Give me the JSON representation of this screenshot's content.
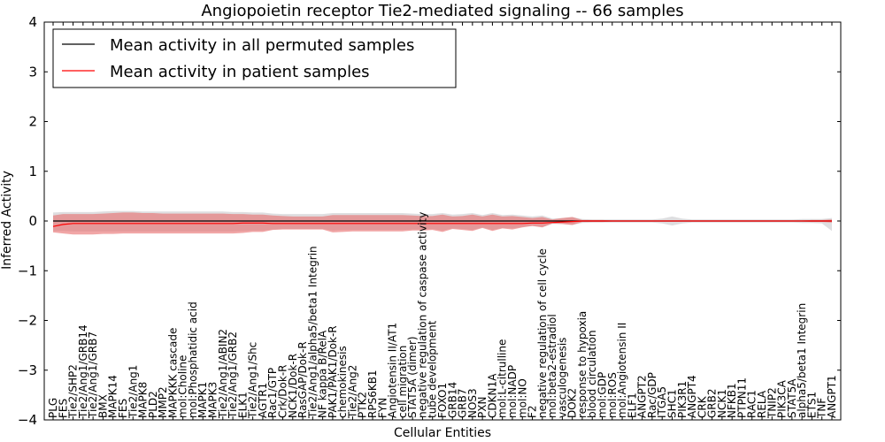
{
  "chart_data": {
    "type": "line",
    "title": "Angiopoietin receptor Tie2-mediated signaling -- 66 samples",
    "xlabel": "Cellular Entities",
    "ylabel": "Inferred Activity",
    "ylim": [
      -4,
      4
    ],
    "yticks": [
      -4,
      -3,
      -2,
      -1,
      0,
      1,
      2,
      3,
      4
    ],
    "legend": {
      "position": "top-left",
      "entries": [
        {
          "label": "Mean activity in all permuted samples",
          "color": "#000000"
        },
        {
          "label": "Mean activity in patient samples",
          "color": "#ff0000"
        }
      ]
    },
    "categories": [
      "PLG",
      "FES",
      "Tie2/SHP2",
      "Tie2/Ang1/GRB14",
      "Tie2/Ang1/GRB7",
      "BMX",
      "MAPK14",
      "FES",
      "Tie2/Ang1",
      "MAPK8",
      "PLD2",
      "MMP2",
      "MAPKKK cascade",
      "mol:Choline",
      "mol:Phosphatidic acid",
      "MAPK1",
      "MAPK3",
      "Tie2/Ang1/ABIN2",
      "Tie2/Ang1/GRB2",
      "ELK1",
      "Tie2/Ang1/Shc",
      "AGTR1",
      "Rac1/GTP",
      "Crk/Dok-R",
      "NCK1/Dok-R",
      "RasGAP/Dok-R",
      "Tie2/Ang1/alpha5/beta1 Integrin",
      "NF kappa B/RelA",
      "PAK1/PAK1/Dok-R",
      "chemokinesis",
      "Tie2/Ang2",
      "PTK2",
      "RPS6KB1",
      "FYN",
      "Angiotensin II/AT1",
      "cell migration",
      "STAT5A (dimer)",
      "negative regulation of caspase activity",
      "tube development",
      "FOXO1",
      "GRB14",
      "GRB7",
      "NOS3",
      "PXN",
      "CDKN1A",
      "mol:L-citrulline",
      "mol:NADP",
      "mol:NO",
      "F2",
      "negative regulation of cell cycle",
      "mol:beta2-estradiol",
      "vasculogenesis",
      "DOK2",
      "response to hypoxia",
      "blood circulation",
      "mol:GDP",
      "mol:ROS",
      "mol:Angiotensin II",
      "ELF1",
      "ANGPT2",
      "Rac/GDP",
      "ITGA5",
      "SHC1",
      "PIK3R1",
      "ANGPT4",
      "CRK",
      "GRB2",
      "NCK1",
      "NFKB1",
      "PTPN11",
      "RAC1",
      "RELA",
      "TNIP2",
      "PIK3CA",
      "STAT5A",
      "alpha5/beta1 Integrin",
      "ETS1",
      "TNF",
      "ANGPT1"
    ],
    "series": [
      {
        "name": "Mean activity in patient samples",
        "color": "#ff0000",
        "values": [
          -0.11,
          -0.07,
          -0.05,
          -0.05,
          -0.05,
          -0.05,
          -0.05,
          -0.05,
          -0.05,
          -0.05,
          -0.05,
          -0.05,
          -0.05,
          -0.05,
          -0.05,
          -0.05,
          -0.05,
          -0.05,
          -0.05,
          -0.04,
          -0.04,
          -0.04,
          -0.05,
          -0.05,
          -0.05,
          -0.05,
          -0.05,
          -0.05,
          -0.05,
          -0.05,
          -0.05,
          -0.05,
          -0.05,
          -0.05,
          -0.05,
          -0.05,
          -0.05,
          -0.05,
          -0.05,
          -0.05,
          -0.05,
          -0.05,
          -0.05,
          -0.05,
          -0.05,
          -0.05,
          -0.05,
          -0.05,
          -0.04,
          -0.04,
          -0.03,
          -0.02,
          -0.01,
          0.0,
          0.0,
          0.0,
          0.0,
          0.0,
          0.0,
          0.0,
          0.0,
          0.0,
          0.0,
          0.0,
          0.0,
          0.0,
          0.0,
          0.0,
          0.0,
          0.0,
          0.0,
          0.0,
          0.0,
          0.0,
          0.0,
          0.0,
          0.0,
          0.0,
          0.0
        ],
        "band_upper": [
          0.11,
          0.14,
          0.14,
          0.14,
          0.14,
          0.15,
          0.16,
          0.17,
          0.17,
          0.16,
          0.16,
          0.15,
          0.15,
          0.15,
          0.15,
          0.15,
          0.15,
          0.15,
          0.14,
          0.14,
          0.13,
          0.13,
          0.11,
          0.1,
          0.09,
          0.09,
          0.09,
          0.09,
          0.12,
          0.12,
          0.12,
          0.12,
          0.12,
          0.12,
          0.12,
          0.12,
          0.11,
          0.1,
          0.1,
          0.13,
          0.09,
          0.1,
          0.13,
          0.09,
          0.13,
          0.09,
          0.1,
          0.08,
          0.06,
          0.08,
          0.03,
          0.06,
          0.08,
          0.02,
          0.02,
          0.02,
          0.01,
          0.01,
          0.01,
          0.01,
          0.01,
          0.01,
          0.01,
          0.01,
          0.01,
          0.01,
          0.01,
          0.01,
          0.01,
          0.01,
          0.01,
          0.01,
          0.01,
          0.01,
          0.01,
          0.01,
          0.02,
          0.02,
          0.03
        ],
        "band_lower": [
          -0.23,
          -0.25,
          -0.27,
          -0.27,
          -0.27,
          -0.26,
          -0.26,
          -0.25,
          -0.25,
          -0.25,
          -0.25,
          -0.25,
          -0.25,
          -0.25,
          -0.25,
          -0.25,
          -0.25,
          -0.25,
          -0.25,
          -0.24,
          -0.22,
          -0.22,
          -0.18,
          -0.17,
          -0.17,
          -0.17,
          -0.17,
          -0.17,
          -0.23,
          -0.22,
          -0.21,
          -0.21,
          -0.21,
          -0.21,
          -0.21,
          -0.21,
          -0.19,
          -0.19,
          -0.18,
          -0.22,
          -0.16,
          -0.18,
          -0.2,
          -0.14,
          -0.2,
          -0.15,
          -0.17,
          -0.13,
          -0.1,
          -0.13,
          -0.05,
          -0.06,
          -0.08,
          -0.02,
          -0.02,
          -0.02,
          -0.01,
          -0.01,
          -0.01,
          -0.01,
          -0.01,
          -0.01,
          -0.01,
          -0.01,
          -0.01,
          -0.01,
          -0.01,
          -0.01,
          -0.01,
          -0.01,
          -0.01,
          -0.01,
          -0.01,
          -0.01,
          -0.01,
          -0.01,
          -0.02,
          -0.02,
          -0.03
        ]
      },
      {
        "name": "Mean activity in all permuted samples",
        "color": "#000000",
        "values": [
          0,
          0,
          0,
          0,
          0,
          0,
          0,
          0,
          0,
          0,
          0,
          0,
          0,
          0,
          0,
          0,
          0,
          0,
          0,
          0,
          0,
          0,
          0,
          0,
          0,
          0,
          0,
          0,
          0,
          0,
          0,
          0,
          0,
          0,
          0,
          0,
          0,
          0,
          0,
          0,
          0,
          0,
          0,
          0,
          0,
          0,
          0,
          0,
          0,
          0,
          0,
          0,
          0,
          0,
          0,
          0,
          0,
          0,
          0,
          0,
          0,
          0,
          0,
          0,
          0,
          0,
          0,
          0,
          0,
          0,
          0,
          0,
          0,
          0,
          0,
          0,
          0,
          0,
          0
        ],
        "band_upper": [
          0.17,
          0.18,
          0.18,
          0.18,
          0.18,
          0.19,
          0.2,
          0.2,
          0.2,
          0.19,
          0.19,
          0.19,
          0.19,
          0.19,
          0.19,
          0.19,
          0.19,
          0.19,
          0.18,
          0.18,
          0.17,
          0.17,
          0.15,
          0.14,
          0.14,
          0.14,
          0.14,
          0.14,
          0.16,
          0.16,
          0.16,
          0.16,
          0.16,
          0.16,
          0.16,
          0.16,
          0.15,
          0.14,
          0.14,
          0.16,
          0.13,
          0.14,
          0.16,
          0.12,
          0.16,
          0.12,
          0.13,
          0.11,
          0.09,
          0.11,
          0.05,
          0.06,
          0.08,
          0.04,
          0.03,
          0.03,
          0.03,
          0.03,
          0.03,
          0.03,
          0.03,
          0.05,
          0.09,
          0.05,
          0.03,
          0.03,
          0.03,
          0.03,
          0.03,
          0.03,
          0.03,
          0.03,
          0.03,
          0.03,
          0.03,
          0.04,
          0.04,
          0.04,
          0.06
        ],
        "band_lower": [
          -0.2,
          -0.2,
          -0.21,
          -0.21,
          -0.21,
          -0.21,
          -0.21,
          -0.21,
          -0.21,
          -0.21,
          -0.21,
          -0.21,
          -0.21,
          -0.21,
          -0.21,
          -0.21,
          -0.21,
          -0.21,
          -0.21,
          -0.2,
          -0.19,
          -0.19,
          -0.17,
          -0.16,
          -0.16,
          -0.16,
          -0.16,
          -0.16,
          -0.19,
          -0.18,
          -0.18,
          -0.18,
          -0.18,
          -0.18,
          -0.18,
          -0.18,
          -0.17,
          -0.17,
          -0.16,
          -0.19,
          -0.15,
          -0.16,
          -0.18,
          -0.13,
          -0.18,
          -0.14,
          -0.15,
          -0.12,
          -0.1,
          -0.12,
          -0.06,
          -0.06,
          -0.08,
          -0.04,
          -0.03,
          -0.03,
          -0.03,
          -0.03,
          -0.03,
          -0.03,
          -0.03,
          -0.05,
          -0.09,
          -0.05,
          -0.03,
          -0.03,
          -0.03,
          -0.03,
          -0.03,
          -0.03,
          -0.03,
          -0.03,
          -0.03,
          -0.03,
          -0.03,
          -0.04,
          -0.04,
          -0.05,
          -0.2
        ]
      }
    ]
  }
}
